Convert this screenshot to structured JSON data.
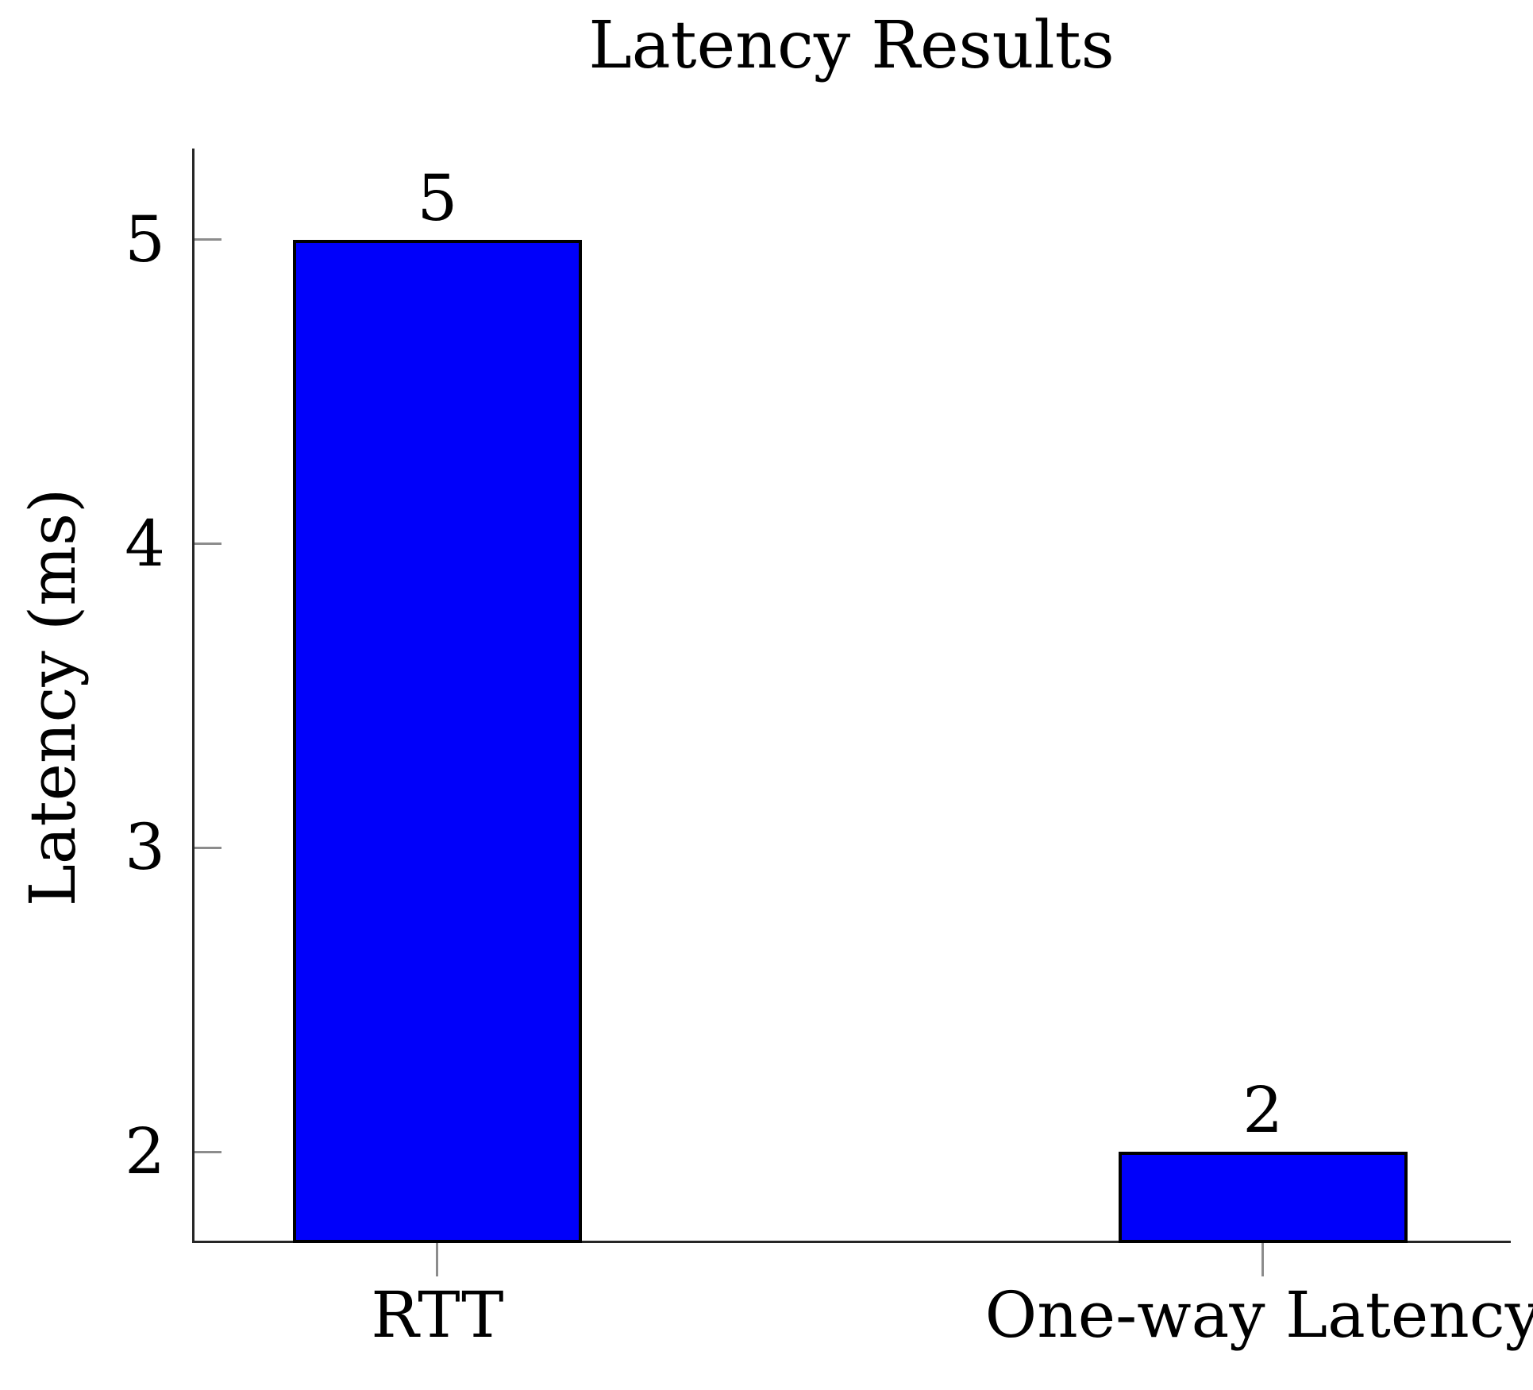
{
  "chart_data": {
    "type": "bar",
    "title": "Latency Results",
    "categories": [
      "RTT",
      "One-way Latency"
    ],
    "values": [
      5,
      2
    ],
    "bar_labels": [
      "5",
      "2"
    ],
    "xlabel": "",
    "ylabel": "Latency (ms)",
    "yticks": [
      "2",
      "3",
      "4",
      "5"
    ],
    "ytick_values": [
      2,
      3,
      4,
      5
    ],
    "ylim": [
      1.7,
      5.3
    ],
    "legend_position": "none",
    "grid": false,
    "colors": {
      "bar_fill": "#0000fa",
      "bar_border": "#000000",
      "axis": "#262626",
      "tick": "#8c8c8c",
      "text": "#000000",
      "background": "#ffffff"
    }
  }
}
